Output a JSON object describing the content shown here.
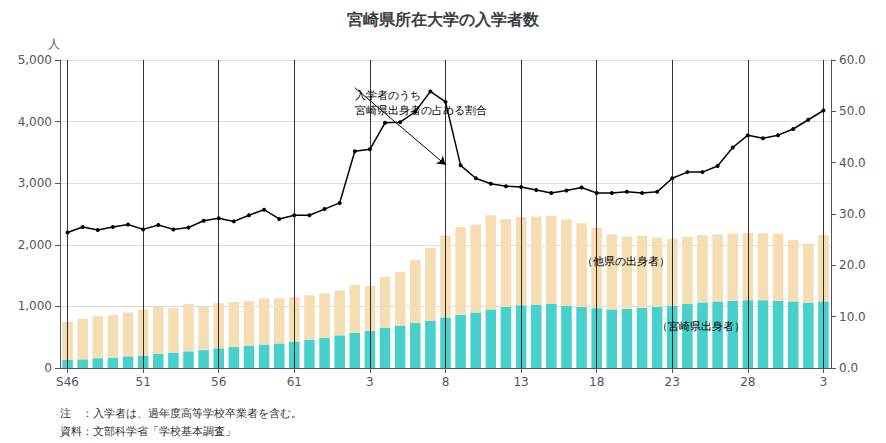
{
  "chart_data": {
    "type": "bar",
    "title": "宮崎県所在大学の入学者数",
    "ylabel": "人",
    "notes": [
      "注　：入学者は、過年度高等学校卒業者を含む。",
      "資料：文部科学省「学校基本調査」"
    ],
    "categories": [
      "S46",
      null,
      null,
      null,
      null,
      "51",
      null,
      null,
      null,
      null,
      "56",
      null,
      null,
      null,
      null,
      "61",
      null,
      null,
      null,
      null,
      "3",
      null,
      null,
      null,
      null,
      "8",
      null,
      null,
      null,
      null,
      "13",
      null,
      null,
      null,
      null,
      "18",
      null,
      null,
      null,
      null,
      "23",
      null,
      null,
      null,
      null,
      "28",
      null,
      null,
      null,
      null,
      "3"
    ],
    "stacked": true,
    "series": [
      {
        "type": "bar",
        "color": "#48D1CC",
        "values": [
          130,
          140,
          160,
          170,
          190,
          200,
          230,
          250,
          270,
          290,
          320,
          340,
          360,
          380,
          400,
          430,
          460,
          490,
          530,
          570,
          600,
          650,
          690,
          730,
          770,
          820,
          860,
          900,
          950,
          990,
          1020,
          1030,
          1040,
          1010,
          990,
          970,
          950,
          960,
          975,
          990,
          1010,
          1040,
          1065,
          1080,
          1090,
          1100,
          1100,
          1090,
          1080,
          1060,
          1080
        ]
      },
      {
        "type": "bar",
        "color": "#F5DEB3",
        "values": [
          620,
          660,
          680,
          690,
          710,
          750,
          770,
          720,
          770,
          710,
          730,
          730,
          730,
          750,
          730,
          720,
          720,
          720,
          730,
          780,
          730,
          830,
          870,
          1020,
          1180,
          1330,
          1430,
          1430,
          1530,
          1430,
          1430,
          1430,
          1430,
          1400,
          1360,
          1310,
          1220,
          1175,
          1175,
          1130,
          1090,
          1090,
          1090,
          1090,
          1090,
          1090,
          1090,
          1090,
          1000,
          960,
          1080
        ]
      },
      {
        "type": "line",
        "color": "#000000",
        "marker": "circle",
        "values": [
          2200,
          2290,
          2240,
          2290,
          2330,
          2250,
          2320,
          2250,
          2280,
          2390,
          2430,
          2380,
          2480,
          2570,
          2420,
          2480,
          2480,
          2580,
          2680,
          3520,
          3550,
          3980,
          3990,
          4160,
          4490,
          4320,
          3290,
          3080,
          2990,
          2950,
          2940,
          2890,
          2840,
          2880,
          2930,
          2840,
          2840,
          2860,
          2840,
          2860,
          3080,
          3180,
          3180,
          3280,
          3580,
          3780,
          3730,
          3780,
          3880,
          4030,
          4180
        ]
      }
    ],
    "ylim": [
      0,
      5000
    ],
    "yticks": [
      0,
      {
        "value": 1000,
        "label": "1,000"
      },
      {
        "value": 2000,
        "label": "2,000"
      },
      {
        "value": 3000,
        "label": "3,000"
      },
      {
        "value": 4000,
        "label": "4,000"
      },
      {
        "value": 5000,
        "label": "5,000"
      }
    ],
    "y2lim": [
      0,
      60
    ],
    "y2ticks": [
      {
        "value": 0,
        "label": "0.0"
      },
      {
        "value": 10,
        "label": "10.0"
      },
      {
        "value": 20,
        "label": "20.0"
      },
      {
        "value": 30,
        "label": "30.0"
      },
      {
        "value": 40,
        "label": "40.0"
      },
      {
        "value": 50,
        "label": "50.0"
      },
      {
        "value": 60,
        "label": "60.0"
      }
    ],
    "vlines": [
      0,
      5,
      10,
      15,
      20,
      25,
      30,
      35,
      40,
      45,
      50
    ],
    "grid": true,
    "annotations": [
      {
        "text": "（宮崎県出身者）",
        "x": 39,
        "y": 550
      },
      {
        "text": "（他県の出身者）",
        "x": 34,
        "y": 1600
      },
      {
        "text": "入学者のうち\n宮崎県出身者の占める割合",
        "x": 19,
        "y": 4550,
        "arrow_to": [
          25,
          3300
        ]
      }
    ]
  }
}
